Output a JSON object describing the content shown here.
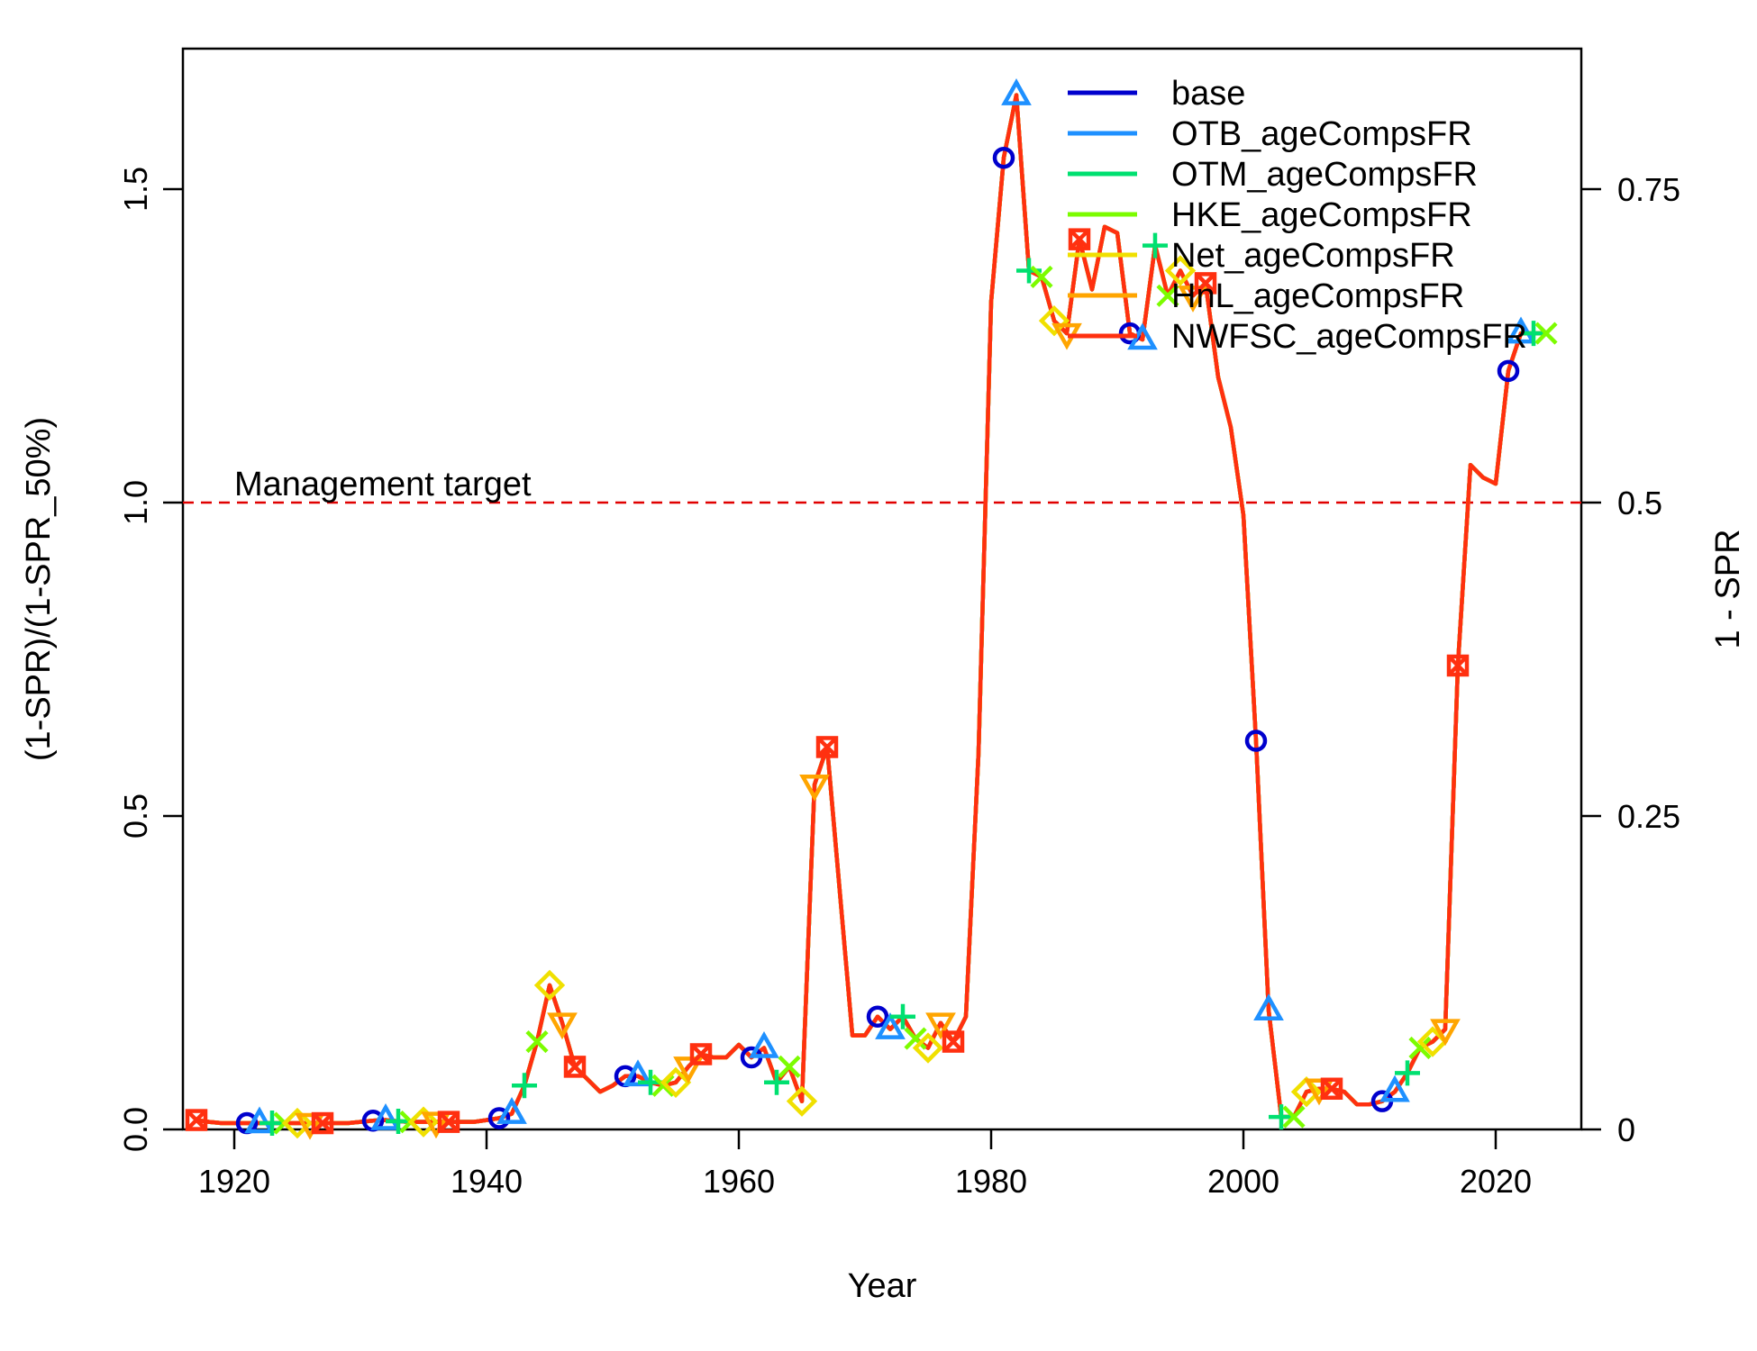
{
  "chart_data": {
    "type": "line",
    "title": "",
    "xlabel": "Year",
    "ylabel": "(1-SPR)/(1-SPR_50%)",
    "y2label": "1 - SPR",
    "xlim": [
      1916,
      2025
    ],
    "ylim": [
      0,
      1.7
    ],
    "x_ticks": [
      1920,
      1940,
      1960,
      1980,
      2000,
      2020
    ],
    "y_ticks": [
      {
        "value": 0,
        "label": "0.0"
      },
      {
        "value": 0.5,
        "label": "0.5"
      },
      {
        "value": 1.0,
        "label": "1.0"
      },
      {
        "value": 1.5,
        "label": "1.5"
      }
    ],
    "y2_ticks": [
      {
        "value": 0,
        "label": "0"
      },
      {
        "value": 0.5,
        "label": "0.25"
      },
      {
        "value": 1.0,
        "label": "0.5"
      },
      {
        "value": 1.5,
        "label": "0.75"
      }
    ],
    "reference_line": {
      "y": 1.0,
      "label": "Management target",
      "color": "#e00000"
    },
    "legend_position": "top-right",
    "series": [
      {
        "name": "base",
        "color": "#0000cd",
        "marker": "circle",
        "marker_years": [
          1921,
          1931,
          1941,
          1951,
          1961,
          1971,
          1981,
          1991,
          2001,
          2011,
          2021
        ]
      },
      {
        "name": "OTB_ageCompsFR",
        "color": "#1e90ff",
        "marker": "triangle-up",
        "marker_years": [
          1922,
          1932,
          1942,
          1952,
          1962,
          1972,
          1982,
          1992,
          2002,
          2012,
          2022
        ]
      },
      {
        "name": "OTM_ageCompsFR",
        "color": "#00e070",
        "marker": "plus",
        "marker_years": [
          1923,
          1933,
          1943,
          1953,
          1963,
          1973,
          1983,
          1993,
          2003,
          2013,
          2023
        ]
      },
      {
        "name": "HKE_ageCompsFR",
        "color": "#7cfc00",
        "marker": "x",
        "marker_years": [
          1924,
          1934,
          1944,
          1954,
          1964,
          1974,
          1984,
          1994,
          2004,
          2014,
          2024
        ]
      },
      {
        "name": "Net_ageCompsFR",
        "color": "#f0e000",
        "marker": "diamond",
        "marker_years": [
          1925,
          1935,
          1945,
          1955,
          1965,
          1975,
          1985,
          1995,
          2005,
          2015
        ]
      },
      {
        "name": "HnL_ageCompsFR",
        "color": "#ffa500",
        "marker": "triangle-down",
        "marker_years": [
          1926,
          1936,
          1946,
          1956,
          1966,
          1976,
          1986,
          1996,
          2006,
          2016
        ]
      },
      {
        "name": "NWFSC_ageCompsFR",
        "color": "#ff3010",
        "marker": "square-cross",
        "marker_years": [
          1917,
          1927,
          1937,
          1947,
          1957,
          1967,
          1977,
          1987,
          1997,
          2007,
          2017
        ]
      }
    ],
    "x": [
      1917,
      1918,
      1919,
      1920,
      1921,
      1922,
      1923,
      1924,
      1925,
      1926,
      1927,
      1928,
      1929,
      1930,
      1931,
      1932,
      1933,
      1934,
      1935,
      1936,
      1937,
      1938,
      1939,
      1940,
      1941,
      1942,
      1943,
      1944,
      1945,
      1946,
      1947,
      1948,
      1949,
      1950,
      1951,
      1952,
      1953,
      1954,
      1955,
      1956,
      1957,
      1958,
      1959,
      1960,
      1961,
      1962,
      1963,
      1964,
      1965,
      1966,
      1967,
      1968,
      1969,
      1970,
      1971,
      1972,
      1973,
      1974,
      1975,
      1976,
      1977,
      1978,
      1979,
      1980,
      1981,
      1982,
      1983,
      1984,
      1985,
      1986,
      1987,
      1988,
      1989,
      1990,
      1991,
      1992,
      1993,
      1994,
      1995,
      1996,
      1997,
      1998,
      1999,
      2000,
      2001,
      2002,
      2003,
      2004,
      2005,
      2006,
      2007,
      2008,
      2009,
      2010,
      2011,
      2012,
      2013,
      2014,
      2015,
      2016,
      2017,
      2018,
      2019,
      2020,
      2021,
      2022,
      2023,
      2024
    ],
    "y": [
      0.015,
      0.012,
      0.01,
      0.01,
      0.01,
      0.01,
      0.01,
      0.01,
      0.01,
      0.01,
      0.01,
      0.01,
      0.01,
      0.012,
      0.014,
      0.015,
      0.013,
      0.012,
      0.012,
      0.012,
      0.012,
      0.012,
      0.012,
      0.015,
      0.018,
      0.025,
      0.07,
      0.14,
      0.23,
      0.17,
      0.1,
      0.08,
      0.06,
      0.07,
      0.085,
      0.085,
      0.075,
      0.07,
      0.075,
      0.1,
      0.12,
      0.115,
      0.115,
      0.135,
      0.115,
      0.13,
      0.075,
      0.1,
      0.045,
      0.55,
      0.61,
      0.38,
      0.15,
      0.15,
      0.18,
      0.16,
      0.18,
      0.145,
      0.13,
      0.17,
      0.14,
      0.18,
      0.6,
      1.32,
      1.55,
      1.65,
      1.37,
      1.36,
      1.29,
      1.27,
      1.42,
      1.34,
      1.44,
      1.43,
      1.27,
      1.26,
      1.41,
      1.33,
      1.37,
      1.33,
      1.35,
      1.2,
      1.12,
      0.98,
      0.62,
      0.19,
      0.02,
      0.02,
      0.06,
      0.065,
      0.065,
      0.06,
      0.04,
      0.04,
      0.045,
      0.06,
      0.09,
      0.13,
      0.14,
      0.16,
      0.74,
      1.06,
      1.04,
      1.03,
      1.21,
      1.27,
      1.27,
      1.27
    ]
  }
}
